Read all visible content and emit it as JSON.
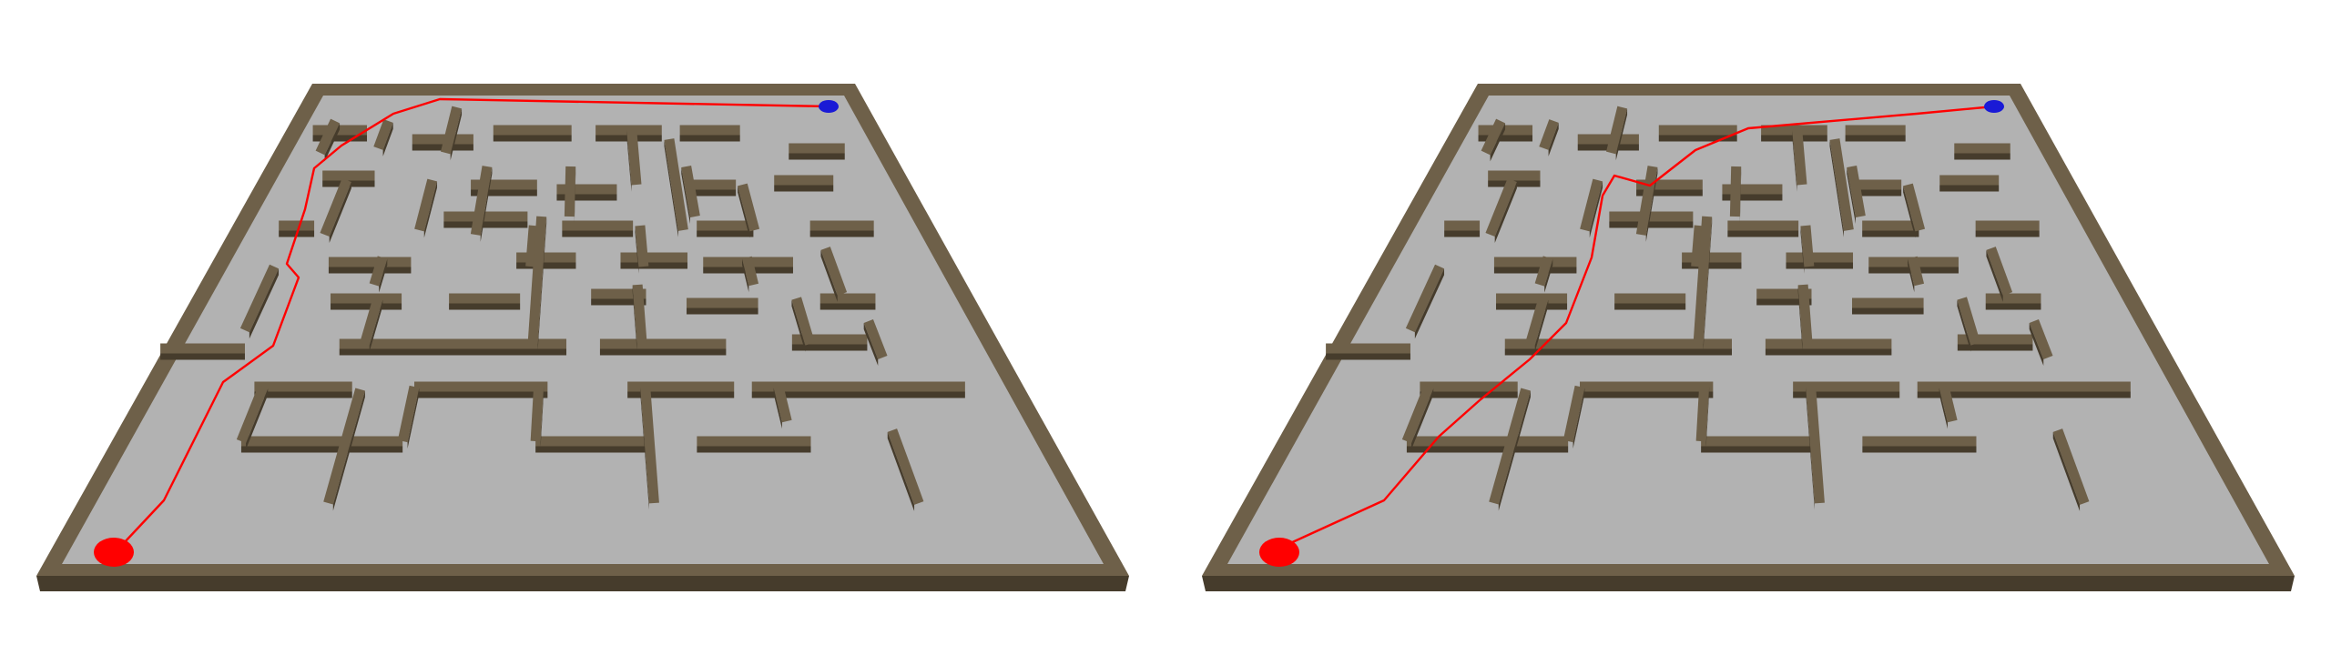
{
  "colors": {
    "background": "#ffffff",
    "floor": "#b2b2b2",
    "wall_top": "#6e6049",
    "wall_side": "#463c2c",
    "path": "#ff0000",
    "start_marker": "#ff0000",
    "goal_marker": "#1a1ad6"
  },
  "views": [
    {
      "name": "left-maze-view",
      "path_label": "red-solution-path-a"
    },
    {
      "name": "right-maze-view",
      "path_label": "red-solution-path-b"
    }
  ],
  "markers": {
    "start": "start-marker-icon",
    "goal": "goal-marker-icon"
  }
}
